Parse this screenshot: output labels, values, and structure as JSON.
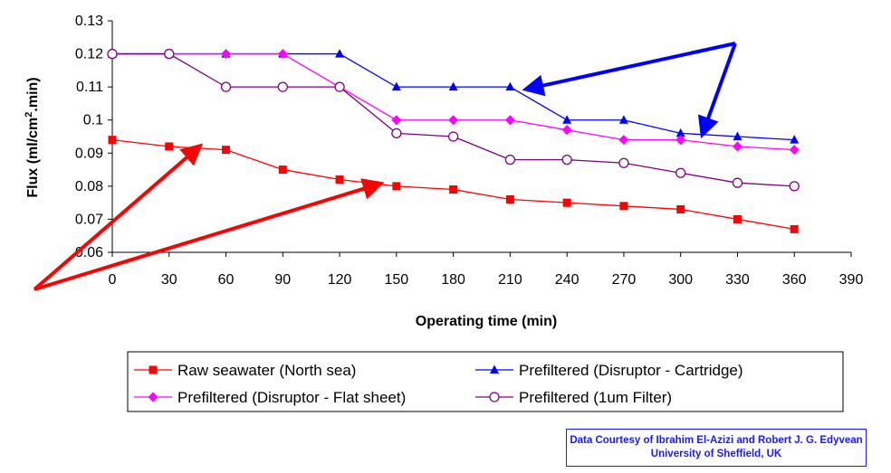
{
  "chart_data": {
    "type": "line",
    "xlabel": "Operating time (min)",
    "ylabel_parts": {
      "pre": "Flux (ml/cm",
      "sup": "2",
      "post": ".min)"
    },
    "xlim": [
      0,
      390
    ],
    "ylim": [
      0.06,
      0.13
    ],
    "x_ticks": [
      "0",
      "30",
      "60",
      "90",
      "120",
      "150",
      "180",
      "210",
      "240",
      "270",
      "300",
      "330",
      "360",
      "390"
    ],
    "y_ticks": [
      "0.06",
      "0.07",
      "0.08",
      "0.09",
      "0.1",
      "0.11",
      "0.12",
      "0.13"
    ],
    "x": [
      0,
      30,
      60,
      90,
      120,
      150,
      180,
      210,
      240,
      270,
      300,
      330,
      360
    ],
    "grid": false,
    "legend_placement": "bottom",
    "series": [
      {
        "name": "Raw seawater (North sea)",
        "color": "#ff0000",
        "marker": "square",
        "values": [
          0.094,
          0.092,
          0.091,
          0.085,
          0.082,
          0.08,
          0.079,
          0.076,
          0.075,
          0.074,
          0.073,
          0.07,
          0.067
        ]
      },
      {
        "name": "Prefiltered (Disruptor - Cartridge)",
        "color": "#0000ff",
        "marker": "triangle",
        "values": [
          0.12,
          0.12,
          0.12,
          0.12,
          0.12,
          0.11,
          0.11,
          0.11,
          0.1,
          0.1,
          0.096,
          0.095,
          0.094
        ]
      },
      {
        "name": "Prefiltered (Disruptor - Flat sheet)",
        "color": "#ff00ff",
        "marker": "diamond",
        "values": [
          0.12,
          0.12,
          0.12,
          0.12,
          0.11,
          0.1,
          0.1,
          0.1,
          0.097,
          0.094,
          0.094,
          0.092,
          0.091
        ]
      },
      {
        "name": "Prefiltered (1um Filter)",
        "color": "#800080",
        "marker": "circle",
        "values": [
          0.12,
          0.12,
          0.11,
          0.11,
          0.11,
          0.096,
          0.095,
          0.088,
          0.088,
          0.087,
          0.084,
          0.081,
          0.08
        ]
      }
    ],
    "annotation_arrows": [
      {
        "color": "#ff0000",
        "target": {
          "x": 45,
          "y": 0.0915
        }
      },
      {
        "color": "#ff0000",
        "target": {
          "x": 140,
          "y": 0.0805
        }
      },
      {
        "color": "#0000ff",
        "target": {
          "x": 220,
          "y": 0.1095
        }
      },
      {
        "color": "#0000ff",
        "target": {
          "x": 312,
          "y": 0.0965
        }
      }
    ]
  },
  "credit": {
    "line1": "Data Courtesy of Ibrahim El-Azizi and Robert J. G. Edyvean",
    "line2": "University of Sheffield, UK"
  }
}
